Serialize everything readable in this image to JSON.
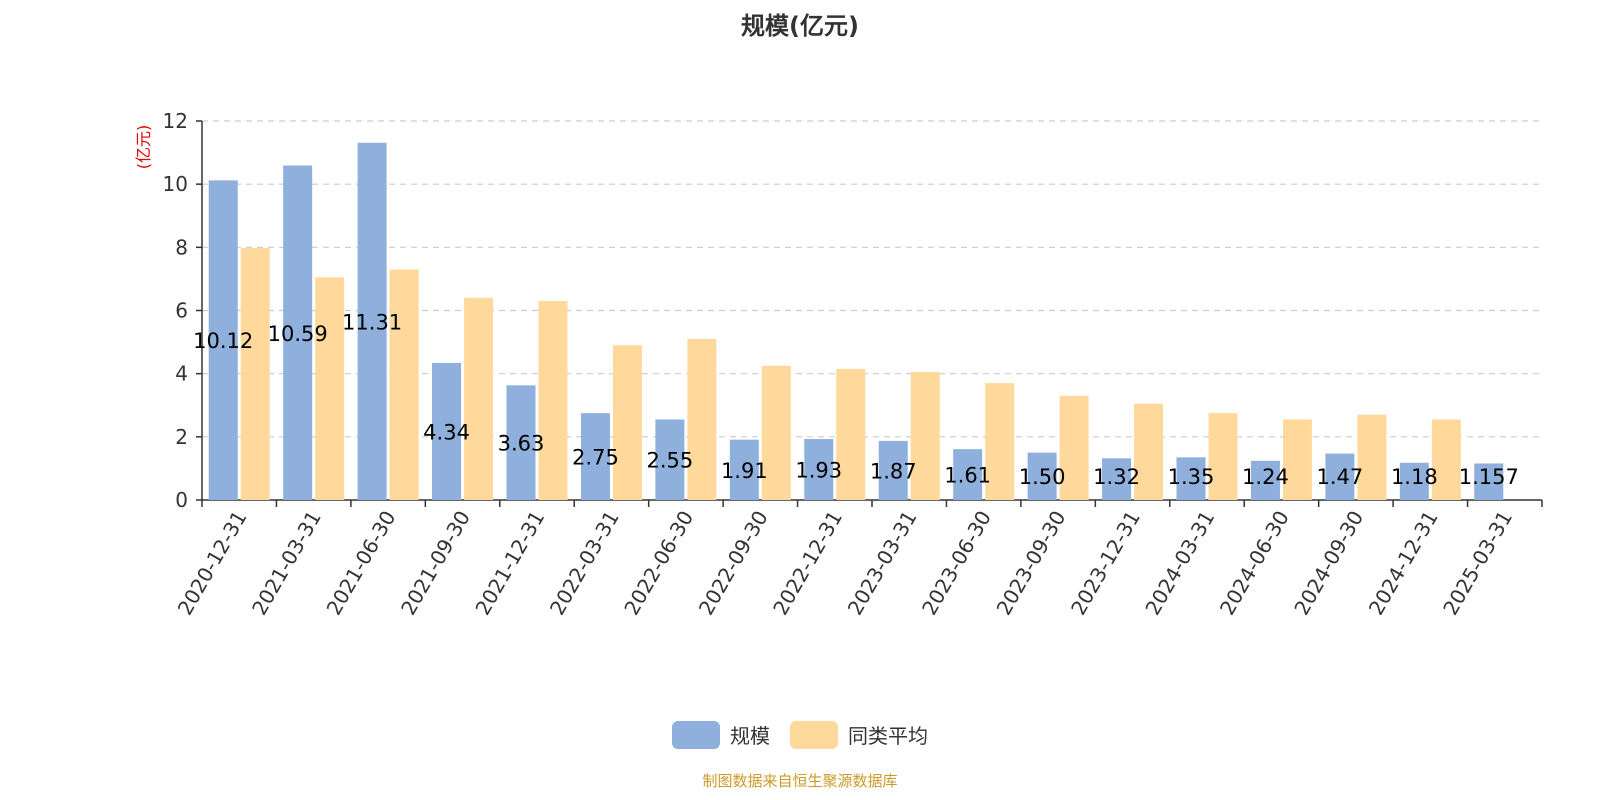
{
  "chart_data": {
    "type": "bar",
    "title": "规模(亿元)",
    "ylabel": "(亿元)",
    "xlabel": "",
    "ylim": [
      0,
      12
    ],
    "yticks": [
      0,
      2,
      4,
      6,
      8,
      10,
      12
    ],
    "grid": true,
    "legend_position": "bottom-center",
    "categories": [
      "2020-12-31",
      "2021-03-31",
      "2021-06-30",
      "2021-09-30",
      "2021-12-31",
      "2022-03-31",
      "2022-06-30",
      "2022-09-30",
      "2022-12-31",
      "2023-03-31",
      "2023-06-30",
      "2023-09-30",
      "2023-12-31",
      "2024-03-31",
      "2024-06-30",
      "2024-09-30",
      "2024-12-31",
      "2025-03-31"
    ],
    "series": [
      {
        "name": "规模",
        "color": "#8fb0dc",
        "values": [
          10.12,
          10.59,
          11.31,
          4.34,
          3.63,
          2.75,
          2.55,
          1.91,
          1.93,
          1.87,
          1.61,
          1.5,
          1.32,
          1.35,
          1.24,
          1.47,
          1.18,
          1.157
        ],
        "labels": [
          "10.12",
          "10.59",
          "11.31",
          "4.34",
          "3.63",
          "2.75",
          "2.55",
          "1.91",
          "1.93",
          "1.87",
          "1.61",
          "1.50",
          "1.32",
          "1.35",
          "1.24",
          "1.47",
          "1.18",
          "1.157"
        ]
      },
      {
        "name": "同类平均",
        "color": "#fed99b",
        "values": [
          7.98,
          7.05,
          7.3,
          6.4,
          6.3,
          4.9,
          5.1,
          4.25,
          4.15,
          4.05,
          3.7,
          3.3,
          3.05,
          2.75,
          2.55,
          2.7,
          2.55,
          null
        ]
      }
    ]
  },
  "source_text": "制图数据来自恒生聚源数据库",
  "ylabel_color": "#e00000"
}
